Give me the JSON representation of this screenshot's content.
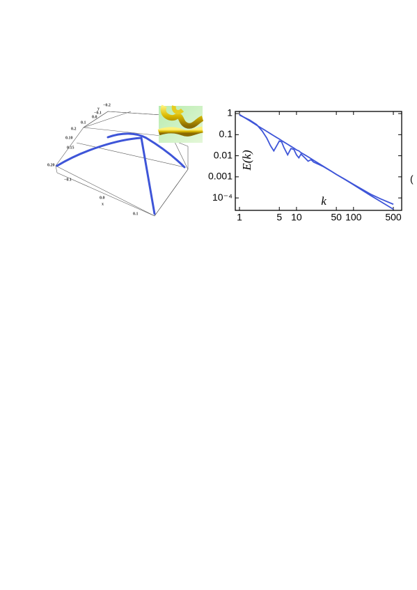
{
  "left_plot": {
    "labels": [
      "y",
      "−0.2",
      "−0.1",
      "0.0",
      "0.1",
      "0.2",
      "0.10",
      "0.15",
      "0.20",
      "−0.1",
      "0.0",
      "x",
      "0.1"
    ]
  },
  "chart_data": {
    "type": "line",
    "x_label": "k",
    "y_label": "E(k)",
    "log_x": true,
    "log_y": true,
    "x": [
      1,
      1.5,
      2,
      2.5,
      3,
      3.5,
      4,
      4.5,
      5,
      5.5,
      6,
      7,
      8,
      9,
      10,
      11,
      12,
      14,
      16,
      18,
      20,
      25,
      30,
      40,
      50,
      70,
      100,
      200,
      300,
      500
    ],
    "series": [
      {
        "color": "#3e55d8",
        "values": [
          0.9,
          0.46,
          0.28,
          0.195,
          0.144,
          0.111,
          0.089,
          0.073,
          0.062,
          0.052,
          0.045,
          0.035,
          0.028,
          0.023,
          0.019,
          0.017,
          0.014,
          0.011,
          0.0089,
          0.0073,
          0.0061,
          0.0042,
          0.0031,
          0.0019,
          0.0013,
          0.00076,
          0.00042,
          0.00013,
          6.7e-05,
          2.9e-05
        ]
      },
      {
        "color": "#3e55d8",
        "values": [
          0.85,
          0.5,
          0.3,
          0.15,
          0.07,
          0.03,
          0.017,
          0.03,
          0.05,
          0.045,
          0.025,
          0.011,
          0.022,
          0.02,
          0.011,
          0.008,
          0.012,
          0.008,
          0.0055,
          0.0065,
          0.005,
          0.0038,
          0.003,
          0.0019,
          0.0013,
          0.00078,
          0.00044,
          0.00015,
          9e-05,
          5e-05
        ]
      }
    ],
    "xlim": [
      0.845,
      700
    ],
    "ylim": [
      2.57e-05,
      1.26
    ],
    "xticks": [
      1,
      5,
      10,
      50,
      100,
      500
    ],
    "yticks": [
      1,
      0.1,
      0.01,
      0.001,
      {
        "value": 0.0001,
        "label": "10⁻⁴"
      }
    ]
  },
  "side_fragment": "("
}
